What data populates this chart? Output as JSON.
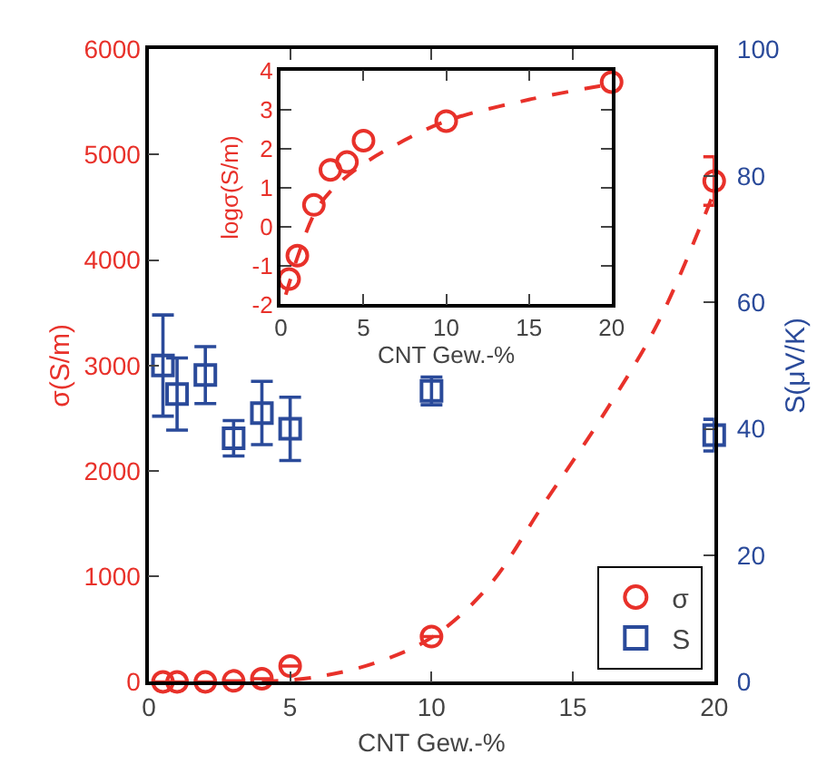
{
  "chart_data": [
    {
      "type": "scatter",
      "xlabel": "CNT Gew.-%",
      "ylabel": "σ(S/m)",
      "y2label": "S(μV/K)",
      "x": [
        0.5,
        1,
        2,
        3,
        4,
        5,
        10,
        20
      ],
      "xlim": [
        0,
        20
      ],
      "xticks": [
        0,
        5,
        10,
        15,
        20
      ],
      "ylim": [
        0,
        6000
      ],
      "yticks": [
        0,
        1000,
        2000,
        3000,
        4000,
        5000,
        6000
      ],
      "y2lim": [
        0,
        100
      ],
      "y2ticks": [
        0,
        20,
        40,
        60,
        80,
        100
      ],
      "legend": "bottom right",
      "grid": false,
      "series": [
        {
          "name": "σ",
          "color": "#e8312a",
          "marker": "circle",
          "values": [
            0,
            0,
            0,
            10,
            30,
            150,
            430,
            4750
          ],
          "errors": [
            null,
            null,
            null,
            null,
            null,
            null,
            null,
            230
          ]
        },
        {
          "type": "line",
          "color": "#e8312a",
          "line_style": "dashed",
          "marker": "none",
          "x": [
            4,
            6,
            8,
            10,
            12,
            14,
            16,
            18,
            20
          ],
          "values": [
            0,
            50,
            180,
            420,
            900,
            1700,
            2500,
            3400,
            4650
          ]
        },
        {
          "name": "S",
          "color": "#2a4a9a",
          "marker": "square",
          "axis": "y2",
          "values": [
            50,
            45.5,
            48.5,
            38.5,
            42.5,
            40,
            46,
            39
          ],
          "errors": [
            8,
            5.7,
            4.5,
            2.8,
            5,
            5,
            2.2,
            2.5
          ]
        }
      ]
    },
    {
      "type": "scatter",
      "xlabel": "CNT Gew.-%",
      "ylabel": "logσ(S/m)",
      "x": [
        0.5,
        1,
        2,
        3,
        4,
        5,
        10,
        20
      ],
      "xlim": [
        0,
        20
      ],
      "xticks": [
        0,
        5,
        10,
        15,
        20
      ],
      "ylim": [
        -2,
        4
      ],
      "yticks": [
        -2,
        -1,
        0,
        1,
        2,
        3,
        4
      ],
      "grid": false,
      "series": [
        {
          "color": "#e8312a",
          "marker": "circle",
          "values": [
            -1.35,
            -0.75,
            0.55,
            1.45,
            1.65,
            2.2,
            2.7,
            3.7
          ]
        },
        {
          "type": "line",
          "color": "#e8312a",
          "line_style": "dashed",
          "marker": "none",
          "x": [
            0.3,
            1,
            2,
            3,
            5,
            7,
            10,
            15,
            20
          ],
          "values": [
            -1.75,
            -0.8,
            0.3,
            0.9,
            1.6,
            2.1,
            2.7,
            3.25,
            3.65
          ]
        }
      ]
    }
  ]
}
